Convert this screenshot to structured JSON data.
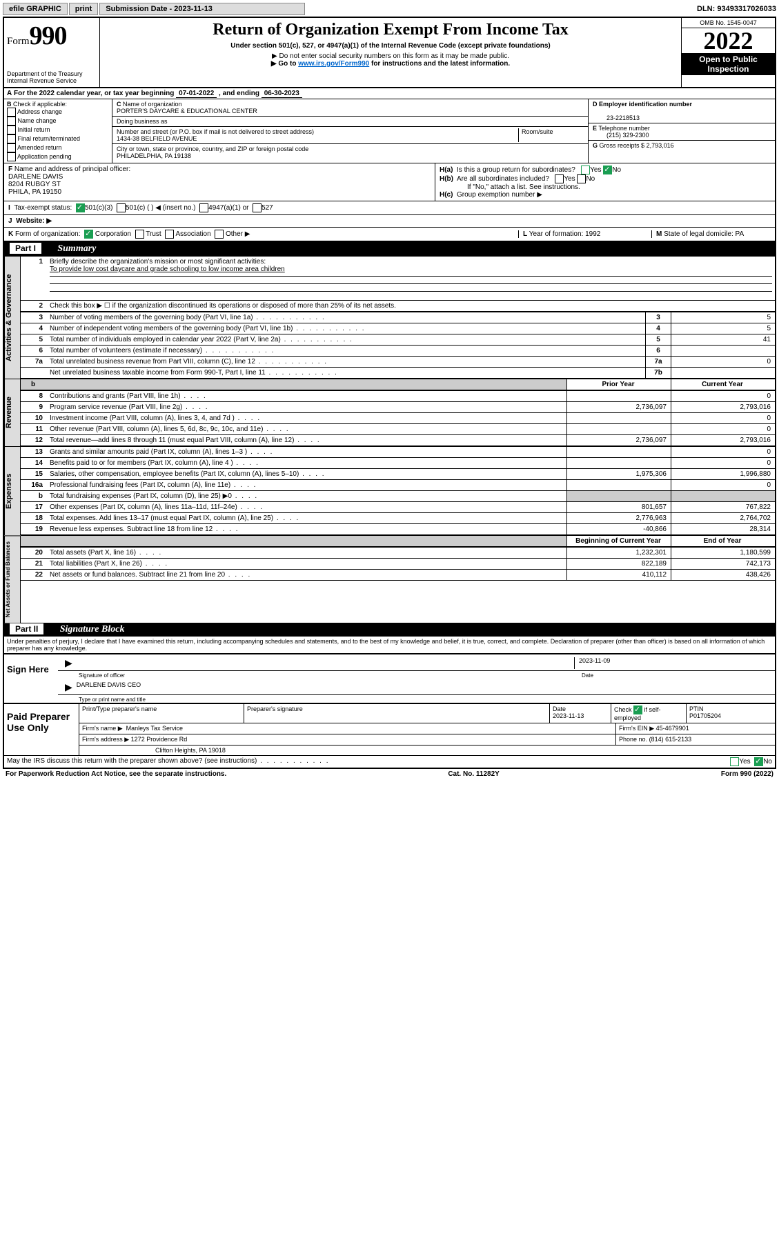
{
  "topbar": {
    "efile": "efile GRAPHIC",
    "print": "print",
    "sub_label": "Submission Date - 2023-11-13",
    "dln": "DLN: 93493317026033"
  },
  "header": {
    "form_word": "Form",
    "form_no": "990",
    "dept": "Department of the Treasury",
    "irs": "Internal Revenue Service",
    "title": "Return of Organization Exempt From Income Tax",
    "subtitle": "Under section 501(c), 527, or 4947(a)(1) of the Internal Revenue Code (except private foundations)",
    "note1": "▶ Do not enter social security numbers on this form as it may be made public.",
    "note2_pre": "▶ Go to ",
    "note2_link": "www.irs.gov/Form990",
    "note2_post": " for instructions and the latest information.",
    "omb": "OMB No. 1545-0047",
    "year": "2022",
    "open": "Open to Public Inspection"
  },
  "A": {
    "text_pre": "For the 2022 calendar year, or tax year beginning ",
    "begin": "07-01-2022",
    "mid": " , and ending ",
    "end": "06-30-2023"
  },
  "B": {
    "label": "Check if applicable:",
    "items": [
      "Address change",
      "Name change",
      "Initial return",
      "Final return/terminated",
      "Amended return",
      "Application pending"
    ]
  },
  "C": {
    "name_label": "Name of organization",
    "name": "PORTER'S DAYCARE & EDUCATIONAL CENTER",
    "dba_label": "Doing business as",
    "street_label": "Number and street (or P.O. box if mail is not delivered to street address)",
    "room_label": "Room/suite",
    "street": "1434-38 BELFIELD AVENUE",
    "city_label": "City or town, state or province, country, and ZIP or foreign postal code",
    "city": "PHILADELPHIA, PA  19138"
  },
  "D": {
    "label": "Employer identification number",
    "value": "23-2218513"
  },
  "E": {
    "label": "Telephone number",
    "value": "(215) 329-2300"
  },
  "G": {
    "label": "Gross receipts $",
    "value": "2,793,016"
  },
  "F": {
    "label": "Name and address of principal officer:",
    "name": "DARLENE DAVIS",
    "street": "8204 RUBGY ST",
    "city": "PHILA, PA  19150"
  },
  "H": {
    "a_label": "Is this a group return for subordinates?",
    "b_label": "Are all subordinates included?",
    "b_note": "If \"No,\" attach a list. See instructions.",
    "c_label": "Group exemption number ▶"
  },
  "I": {
    "label": "Tax-exempt status:",
    "o1": "501(c)(3)",
    "o2": "501(c) (   ) ◀ (insert no.)",
    "o3": "4947(a)(1) or",
    "o4": "527"
  },
  "J": {
    "label": "Website: ▶"
  },
  "K": {
    "label": "Form of organization:",
    "o1": "Corporation",
    "o2": "Trust",
    "o3": "Association",
    "o4": "Other ▶",
    "L_label": "Year of formation:",
    "L_val": "1992",
    "M_label": "State of legal domicile:",
    "M_val": "PA"
  },
  "parts": {
    "p1": "Part I",
    "p1_title": "Summary",
    "p2": "Part II",
    "p2_title": "Signature Block"
  },
  "summary": {
    "l1_label": "Briefly describe the organization's mission or most significant activities:",
    "l1_text": "To provide low cost daycare and grade schooling to low income area children",
    "l2": "Check this box ▶ ☐  if the organization discontinued its operations or disposed of more than 25% of its net assets.",
    "rows_gov": [
      {
        "n": "3",
        "lab": "Number of voting members of the governing body (Part VI, line 1a)",
        "box": "3",
        "val": "5"
      },
      {
        "n": "4",
        "lab": "Number of independent voting members of the governing body (Part VI, line 1b)",
        "box": "4",
        "val": "5"
      },
      {
        "n": "5",
        "lab": "Total number of individuals employed in calendar year 2022 (Part V, line 2a)",
        "box": "5",
        "val": "41"
      },
      {
        "n": "6",
        "lab": "Total number of volunteers (estimate if necessary)",
        "box": "6",
        "val": ""
      },
      {
        "n": "7a",
        "lab": "Total unrelated business revenue from Part VIII, column (C), line 12",
        "box": "7a",
        "val": "0"
      },
      {
        "n": "",
        "lab": "Net unrelated business taxable income from Form 990-T, Part I, line 11",
        "box": "7b",
        "val": ""
      }
    ],
    "hdr_prior": "Prior Year",
    "hdr_curr": "Current Year",
    "rows_rev": [
      {
        "n": "8",
        "lab": "Contributions and grants (Part VIII, line 1h)",
        "p": "",
        "c": "0"
      },
      {
        "n": "9",
        "lab": "Program service revenue (Part VIII, line 2g)",
        "p": "2,736,097",
        "c": "2,793,016"
      },
      {
        "n": "10",
        "lab": "Investment income (Part VIII, column (A), lines 3, 4, and 7d )",
        "p": "",
        "c": "0"
      },
      {
        "n": "11",
        "lab": "Other revenue (Part VIII, column (A), lines 5, 6d, 8c, 9c, 10c, and 11e)",
        "p": "",
        "c": "0"
      },
      {
        "n": "12",
        "lab": "Total revenue—add lines 8 through 11 (must equal Part VIII, column (A), line 12)",
        "p": "2,736,097",
        "c": "2,793,016"
      }
    ],
    "rows_exp": [
      {
        "n": "13",
        "lab": "Grants and similar amounts paid (Part IX, column (A), lines 1–3 )",
        "p": "",
        "c": "0"
      },
      {
        "n": "14",
        "lab": "Benefits paid to or for members (Part IX, column (A), line 4 )",
        "p": "",
        "c": "0"
      },
      {
        "n": "15",
        "lab": "Salaries, other compensation, employee benefits (Part IX, column (A), lines 5–10)",
        "p": "1,975,306",
        "c": "1,996,880"
      },
      {
        "n": "16a",
        "lab": "Professional fundraising fees (Part IX, column (A), line 11e)",
        "p": "",
        "c": "0"
      },
      {
        "n": "b",
        "lab": "Total fundraising expenses (Part IX, column (D), line 25) ▶0",
        "p": "GRAY",
        "c": "GRAY"
      },
      {
        "n": "17",
        "lab": "Other expenses (Part IX, column (A), lines 11a–11d, 11f–24e)",
        "p": "801,657",
        "c": "767,822"
      },
      {
        "n": "18",
        "lab": "Total expenses. Add lines 13–17 (must equal Part IX, column (A), line 25)",
        "p": "2,776,963",
        "c": "2,764,702"
      },
      {
        "n": "19",
        "lab": "Revenue less expenses. Subtract line 18 from line 12",
        "p": "-40,866",
        "c": "28,314"
      }
    ],
    "hdr_boy": "Beginning of Current Year",
    "hdr_eoy": "End of Year",
    "rows_na": [
      {
        "n": "20",
        "lab": "Total assets (Part X, line 16)",
        "p": "1,232,301",
        "c": "1,180,599"
      },
      {
        "n": "21",
        "lab": "Total liabilities (Part X, line 26)",
        "p": "822,189",
        "c": "742,173"
      },
      {
        "n": "22",
        "lab": "Net assets or fund balances. Subtract line 21 from line 20",
        "p": "410,112",
        "c": "438,426"
      }
    ],
    "vlabels": {
      "gov": "Activities & Governance",
      "rev": "Revenue",
      "exp": "Expenses",
      "na": "Net Assets or Fund Balances"
    }
  },
  "sig_disclaimer": "Under penalties of perjury, I declare that I have examined this return, including accompanying schedules and statements, and to the best of my knowledge and belief, it is true, correct, and complete. Declaration of preparer (other than officer) is based on all information of which preparer has any knowledge.",
  "sign": {
    "here": "Sign Here",
    "sig_label": "Signature of officer",
    "date_label": "Date",
    "date": "2023-11-09",
    "name": "DARLENE DAVIS CEO",
    "name_label": "Type or print name and title"
  },
  "paid": {
    "title": "Paid Preparer Use Only",
    "h1": "Print/Type preparer's name",
    "h2": "Preparer's signature",
    "h3": "Date",
    "h3v": "2023-11-13",
    "h4": "Check ☑ if self-employed",
    "h5": "PTIN",
    "h5v": "P01705204",
    "firm_label": "Firm's name  ▶",
    "firm": "Manleys Tax Service",
    "ein_label": "Firm's EIN ▶",
    "ein": "45-4679901",
    "addr_label": "Firm's address ▶",
    "addr1": "1272 Providence Rd",
    "addr2": "Clifton Heights, PA  19018",
    "phone_label": "Phone no.",
    "phone": "(814) 615-2133"
  },
  "footer": {
    "q": "May the IRS discuss this return with the preparer shown above? (see instructions)",
    "pra": "For Paperwork Reduction Act Notice, see the separate instructions.",
    "cat": "Cat. No. 11282Y",
    "form": "Form 990 (2022)"
  }
}
